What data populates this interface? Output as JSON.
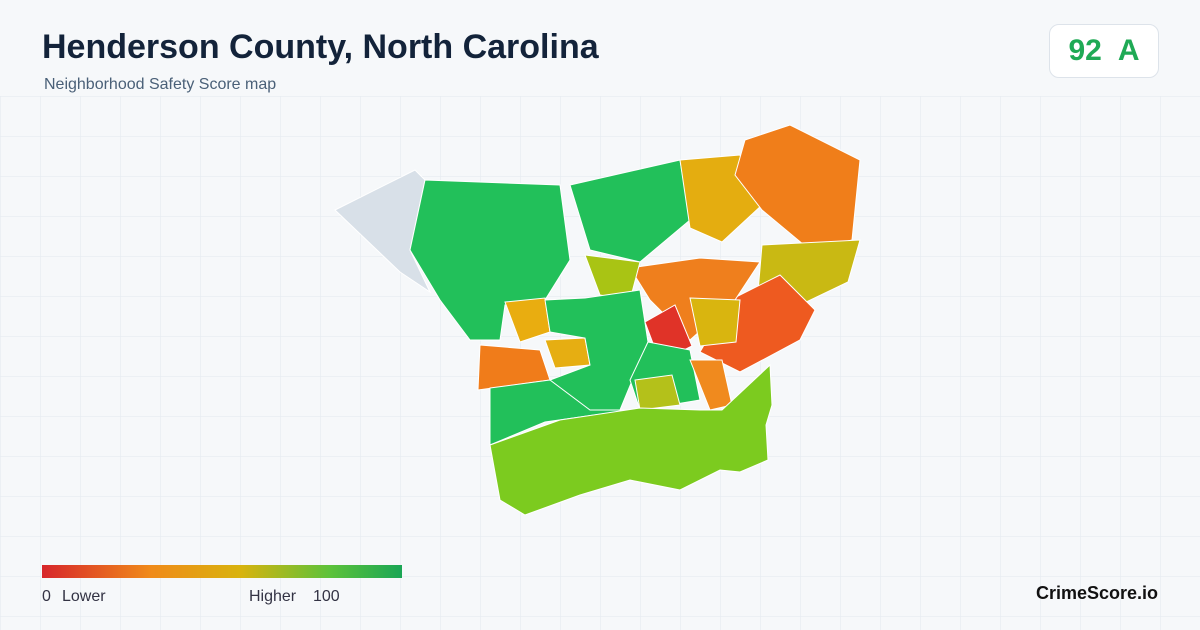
{
  "header": {
    "title": "Henderson County, North Carolina",
    "subtitle": "Neighborhood Safety Score map"
  },
  "score": {
    "value": "92",
    "grade": "A"
  },
  "legend": {
    "min": "0",
    "min_label": "Lower",
    "max_label": "Higher",
    "max": "100"
  },
  "footer": {
    "brand": "CrimeScore.io"
  }
}
